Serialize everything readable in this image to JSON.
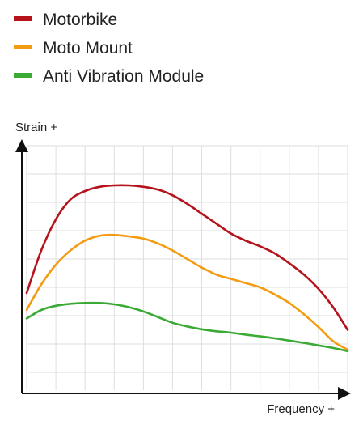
{
  "chart_data": {
    "type": "line",
    "title": "",
    "xlabel": "Frequency +",
    "ylabel": "Strain +",
    "xlim": [
      0,
      11
    ],
    "ylim": [
      0,
      8
    ],
    "grid": true,
    "legend_position": "top-left",
    "series": [
      {
        "name": "Motorbike",
        "color": "#b5121b",
        "x": [
          0,
          0.5,
          1,
          1.5,
          2,
          2.5,
          3,
          3.5,
          4,
          4.5,
          5,
          5.5,
          6,
          6.5,
          7,
          7.5,
          8,
          8.5,
          9,
          9.5,
          10,
          10.5,
          11
        ],
        "y": [
          2.8,
          4.3,
          5.4,
          6.1,
          6.4,
          6.55,
          6.6,
          6.6,
          6.55,
          6.45,
          6.25,
          5.95,
          5.6,
          5.25,
          4.9,
          4.65,
          4.45,
          4.2,
          3.85,
          3.45,
          2.95,
          2.3,
          1.5
        ]
      },
      {
        "name": "Moto Mount",
        "color": "#f39c12",
        "x": [
          0,
          0.5,
          1,
          1.5,
          2,
          2.5,
          3,
          3.5,
          4,
          4.5,
          5,
          5.5,
          6,
          6.5,
          7,
          7.5,
          8,
          8.5,
          9,
          9.5,
          10,
          10.5,
          11
        ],
        "y": [
          2.2,
          3.1,
          3.8,
          4.3,
          4.65,
          4.82,
          4.85,
          4.8,
          4.72,
          4.55,
          4.3,
          4.0,
          3.7,
          3.45,
          3.3,
          3.15,
          3.0,
          2.75,
          2.45,
          2.05,
          1.6,
          1.1,
          0.8
        ]
      },
      {
        "name": "Anti Vibration Module",
        "color": "#3aaa35",
        "x": [
          0,
          0.5,
          1,
          1.5,
          2,
          2.5,
          3,
          3.5,
          4,
          4.5,
          5,
          5.5,
          6,
          6.5,
          7,
          7.5,
          8,
          8.5,
          9,
          9.5,
          10,
          10.5,
          11
        ],
        "y": [
          1.9,
          2.2,
          2.35,
          2.42,
          2.45,
          2.45,
          2.4,
          2.3,
          2.15,
          1.95,
          1.75,
          1.62,
          1.52,
          1.45,
          1.4,
          1.33,
          1.27,
          1.2,
          1.12,
          1.04,
          0.95,
          0.86,
          0.75
        ]
      }
    ]
  }
}
